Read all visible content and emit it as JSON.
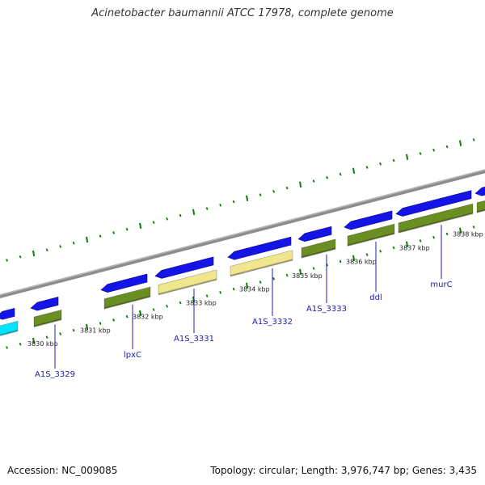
{
  "title": "Acinetobacter baumannii ATCC 17978, complete genome",
  "footer": {
    "accession": "Accession: NC_009085",
    "summary": "Topology: circular; Length: 3,976,747 bp; Genes: 3,435"
  },
  "colors": {
    "backbone": "#8c8c8c",
    "forward_gene": "#1414e6",
    "reverse_cds": "#6b8e23",
    "reverse_other": "#f0e68c",
    "highlight": "#00e5ff",
    "tick": "#0a7d0a",
    "label_line": "#1b1bb0"
  },
  "scale": {
    "ticks": [
      {
        "label": "3830 kbp"
      },
      {
        "label": "3831 kbp"
      },
      {
        "label": "3832 kbp"
      },
      {
        "label": "3833 kbp"
      },
      {
        "label": "3834 kbp"
      },
      {
        "label": "3835 kbp"
      },
      {
        "label": "3836 kbp"
      },
      {
        "label": "3837 kbp"
      },
      {
        "label": "3838 kbp"
      }
    ]
  },
  "genes": [
    {
      "label": "A1S_3329"
    },
    {
      "label": "lpxC"
    },
    {
      "label": "A1S_3331"
    },
    {
      "label": "A1S_3332"
    },
    {
      "label": "A1S_3333"
    },
    {
      "label": "ddl"
    },
    {
      "label": "murC"
    }
  ]
}
